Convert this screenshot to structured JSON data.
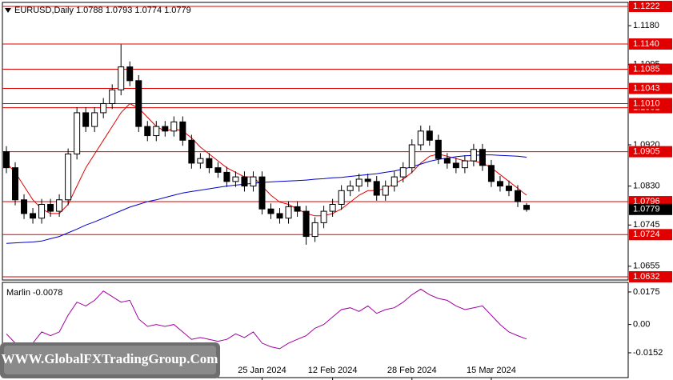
{
  "chart_data": [
    {
      "type": "candlestick",
      "title": "EURUSD,Daily  1.0788 1.0793 1.0774 1.0779",
      "categories": [
        null,
        null,
        null,
        null,
        null,
        null,
        null,
        null,
        null,
        null,
        null,
        null,
        null,
        null,
        null,
        null,
        null,
        null,
        null,
        null,
        null,
        null,
        null,
        null,
        null,
        null,
        null,
        null,
        null,
        "25 Jan 2024",
        null,
        null,
        null,
        null,
        null,
        null,
        null,
        "12 Feb 2024",
        null,
        null,
        null,
        null,
        null,
        null,
        null,
        null,
        "28 Feb 2024",
        null,
        null,
        null,
        null,
        null,
        null,
        null,
        null,
        "15 Mar 2024",
        null,
        null,
        null,
        null
      ],
      "open": [
        1.0905,
        1.087,
        1.08,
        1.077,
        1.076,
        1.079,
        1.0775,
        1.08,
        1.09,
        1.099,
        1.096,
        1.099,
        1.101,
        1.104,
        1.109,
        1.106,
        1.096,
        1.094,
        1.096,
        1.095,
        1.097,
        1.093,
        1.088,
        1.089,
        1.087,
        1.086,
        1.084,
        1.085,
        1.083,
        1.085,
        1.078,
        1.077,
        1.076,
        1.0785,
        1.0775,
        1.072,
        1.075,
        1.0775,
        1.079,
        1.082,
        1.083,
        1.0845,
        1.084,
        1.081,
        1.083,
        1.085,
        1.087,
        1.092,
        1.095,
        1.093,
        1.089,
        1.088,
        1.087,
        1.0885,
        1.091,
        1.0875,
        1.084,
        1.083,
        1.082,
        1.0788
      ],
      "high": [
        1.0917,
        1.0882,
        1.0812,
        1.0782,
        1.0802,
        1.0802,
        1.0812,
        1.0912,
        1.1002,
        1.1002,
        1.1002,
        1.1022,
        1.1052,
        1.1139,
        1.1102,
        1.1072,
        1.0972,
        1.0972,
        1.0972,
        1.0982,
        1.0982,
        1.0942,
        1.0902,
        1.0902,
        1.0882,
        1.0872,
        1.0862,
        1.0862,
        1.0862,
        1.0862,
        1.0792,
        1.0782,
        1.0797,
        1.0797,
        1.0787,
        1.0762,
        1.0787,
        1.0802,
        1.0832,
        1.0842,
        1.0857,
        1.0857,
        1.0852,
        1.0842,
        1.0862,
        1.0882,
        1.0932,
        1.0962,
        1.0962,
        1.0942,
        1.0902,
        1.0892,
        1.0897,
        1.0922,
        1.0922,
        1.0887,
        1.0852,
        1.0842,
        1.0832,
        1.0793
      ],
      "low": [
        1.0858,
        1.0788,
        1.0758,
        1.0748,
        1.0748,
        1.0763,
        1.0763,
        1.0788,
        1.0888,
        1.0948,
        1.0948,
        1.0978,
        1.0998,
        1.1028,
        1.1048,
        1.0948,
        1.0928,
        1.0928,
        1.0938,
        1.0938,
        1.0918,
        1.0868,
        1.0868,
        1.0858,
        1.0848,
        1.0828,
        1.0828,
        1.0818,
        1.0818,
        1.0768,
        1.0758,
        1.0748,
        1.0748,
        1.0763,
        1.0702,
        1.0708,
        1.0738,
        1.0763,
        1.0778,
        1.0808,
        1.0818,
        1.0828,
        1.0798,
        1.0798,
        1.0818,
        1.0838,
        1.0858,
        1.0908,
        1.0918,
        1.0878,
        1.0868,
        1.0858,
        1.0858,
        1.0873,
        1.0863,
        1.0828,
        1.0818,
        1.0808,
        1.0784,
        1.0774
      ],
      "close": [
        1.087,
        1.08,
        1.077,
        1.076,
        1.079,
        1.0775,
        1.08,
        1.09,
        1.099,
        1.096,
        1.099,
        1.101,
        1.104,
        1.109,
        1.106,
        1.096,
        1.094,
        1.096,
        1.095,
        1.097,
        1.093,
        1.088,
        1.089,
        1.087,
        1.086,
        1.084,
        1.085,
        1.083,
        1.085,
        1.078,
        1.077,
        1.076,
        1.0785,
        1.0775,
        1.072,
        1.075,
        1.0775,
        1.079,
        1.082,
        1.083,
        1.0845,
        1.084,
        1.081,
        1.083,
        1.085,
        1.087,
        1.092,
        1.095,
        1.093,
        1.089,
        1.088,
        1.087,
        1.0885,
        1.091,
        1.0875,
        1.084,
        1.083,
        1.082,
        1.0796,
        1.0779
      ],
      "series": [
        {
          "color": "#e00000",
          "values": [
            1.088,
            1.086,
            1.083,
            1.08,
            1.078,
            1.077,
            1.077,
            1.079,
            1.083,
            1.087,
            1.09,
            1.093,
            1.096,
            1.099,
            1.101,
            1.1,
            1.098,
            1.096,
            1.095,
            1.0955,
            1.095,
            1.0935,
            1.0915,
            1.09,
            1.0885,
            1.087,
            1.086,
            1.085,
            1.085,
            1.083,
            1.081,
            1.0795,
            1.079,
            1.078,
            1.077,
            1.0765,
            1.0765,
            1.077,
            1.078,
            1.0795,
            1.081,
            1.082,
            1.082,
            1.0825,
            1.0835,
            1.0845,
            1.086,
            1.088,
            1.0895,
            1.09,
            1.0895,
            1.089,
            1.0885,
            1.0885,
            1.088,
            1.087,
            1.0855,
            1.084,
            1.0825,
            1.081
          ]
        },
        {
          "color": "#0000cc",
          "values": [
            1.0705,
            1.0706,
            1.0707,
            1.0708,
            1.071,
            1.0715,
            1.072,
            1.0728,
            1.0736,
            1.0745,
            1.0752,
            1.076,
            1.0768,
            1.0776,
            1.0784,
            1.079,
            1.0796,
            1.08,
            1.0805,
            1.081,
            1.0815,
            1.0818,
            1.0821,
            1.0824,
            1.0827,
            1.083,
            1.0832,
            1.0834,
            1.0836,
            1.0838,
            1.0839,
            1.084,
            1.0841,
            1.0842,
            1.0843,
            1.0845,
            1.0846,
            1.0848,
            1.0849,
            1.0851,
            1.0853,
            1.0855,
            1.0857,
            1.086,
            1.0863,
            1.0867,
            1.0872,
            1.0878,
            1.0884,
            1.0888,
            1.0891,
            1.0894,
            1.0896,
            1.0897,
            1.0898,
            1.0898,
            1.0897,
            1.0896,
            1.0895,
            1.0893
          ]
        }
      ],
      "levels": [
        {
          "value": 1.1222,
          "label": "1.1222"
        },
        {
          "value": 1.114,
          "label": "1.1140"
        },
        {
          "value": 1.1085,
          "label": "1.1085"
        },
        {
          "value": 1.1043,
          "label": "1.1043"
        },
        {
          "value": 1.1001,
          "label": "1.1001"
        },
        {
          "value": 1.101,
          "label": "1.1010"
        },
        {
          "value": 1.0905,
          "label": "1.0905"
        },
        {
          "value": 1.0796,
          "label": "1.0796"
        },
        {
          "value": 1.0724,
          "label": "1.0724"
        },
        {
          "value": 1.0632,
          "label": "1.0632"
        }
      ],
      "level_color": "#e00000",
      "current_price": {
        "value": 1.0779,
        "label": "1.0779"
      },
      "ylim": [
        1.0625,
        1.1236
      ],
      "yticks": [
        {
          "value": 1.118,
          "label": "1.1180"
        },
        {
          "value": 1.1095,
          "label": "1.1095"
        },
        {
          "value": 1.092,
          "label": "1.0920"
        },
        {
          "value": 1.083,
          "label": "1.0830"
        },
        {
          "value": 1.0745,
          "label": "1.0745"
        },
        {
          "value": 1.0655,
          "label": "1.0655"
        }
      ]
    },
    {
      "type": "line",
      "title": "Marlin -0.0078",
      "series": [
        {
          "color": "#a000a0",
          "values": [
            -0.005,
            -0.01,
            -0.012,
            -0.01,
            -0.004,
            -0.006,
            -0.004,
            0.005,
            0.012,
            0.01,
            0.013,
            0.018,
            0.015,
            0.012,
            0.013,
            0.003,
            -0.001,
            0.0,
            -0.001,
            0.0,
            -0.004,
            -0.008,
            -0.007,
            -0.008,
            -0.009,
            -0.008,
            -0.005,
            -0.007,
            -0.004,
            -0.01,
            -0.012,
            -0.013,
            -0.01,
            -0.008,
            -0.006,
            -0.002,
            0.0,
            0.004,
            0.008,
            0.009,
            0.007,
            0.01,
            0.006,
            0.008,
            0.009,
            0.012,
            0.016,
            0.019,
            0.016,
            0.014,
            0.013,
            0.01,
            0.008,
            0.009,
            0.01,
            0.005,
            0.0,
            -0.004,
            -0.006,
            -0.0078
          ]
        }
      ],
      "ylim": [
        -0.0294,
        0.0222
      ],
      "yticks": [
        0.0175,
        {
          "value": 0,
          "label": "0.00"
        },
        -0.0152
      ]
    }
  ],
  "watermark": "WWW.GlobalFXTradingGroup.Com"
}
